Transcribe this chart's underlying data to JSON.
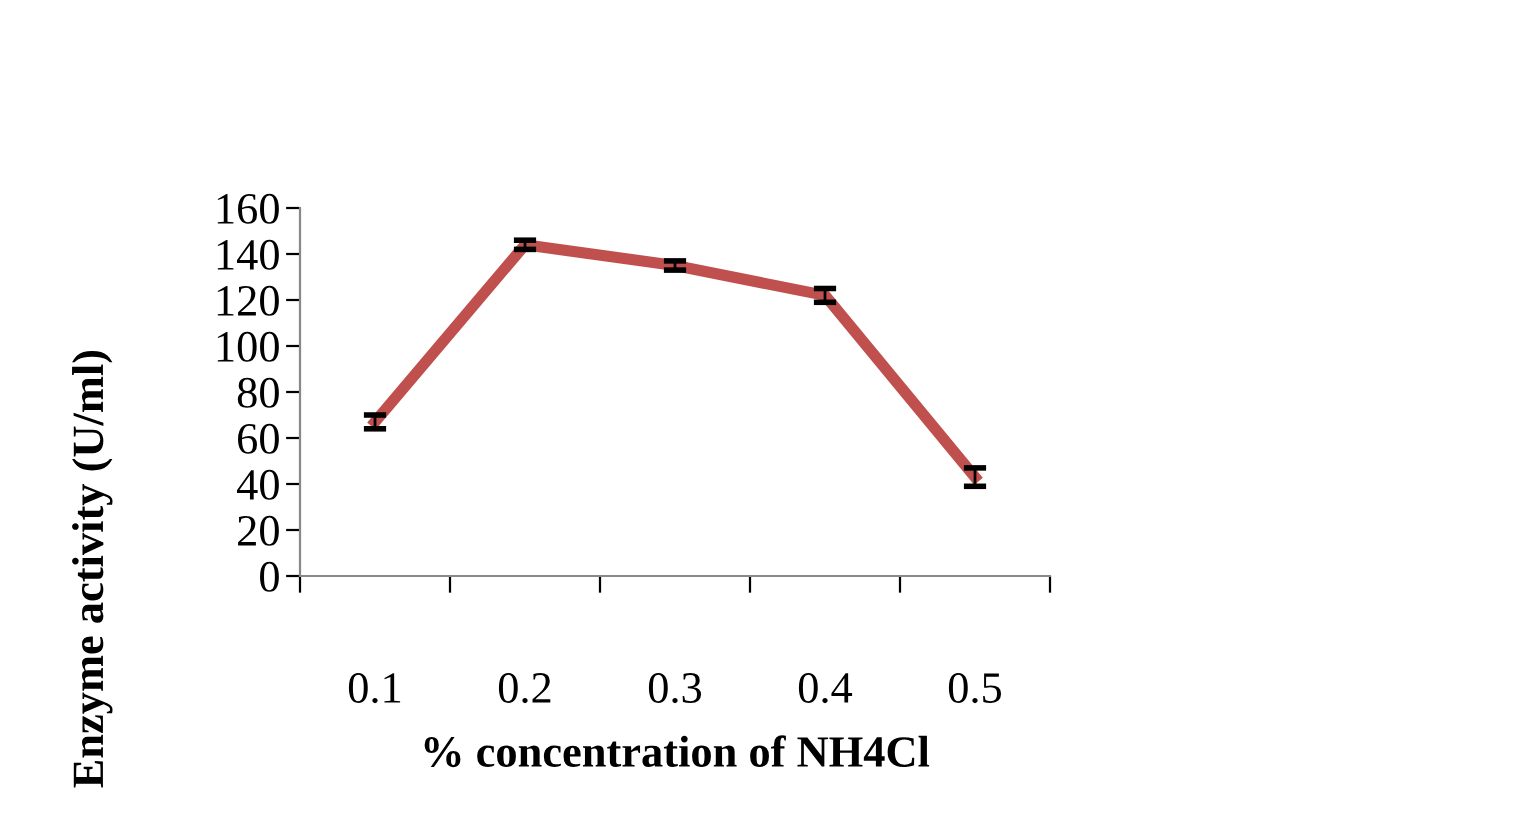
{
  "chart_data": {
    "type": "line",
    "xlabel": "% concentration of NH4Cl",
    "ylabel": "Enzyme activity (U/ml)",
    "categories": [
      "0.1",
      "0.2",
      "0.3",
      "0.4",
      "0.5"
    ],
    "series": [
      {
        "color": "#c0504d",
        "values": [
          67,
          144,
          135,
          122,
          43
        ],
        "errors": [
          3,
          2,
          2,
          3,
          4
        ]
      }
    ],
    "ylim": [
      0,
      160
    ],
    "yticks": [
      0,
      20,
      40,
      60,
      80,
      100,
      120,
      140,
      160
    ],
    "grid": false,
    "legend": false,
    "marker": "none",
    "line_style": "solid"
  }
}
